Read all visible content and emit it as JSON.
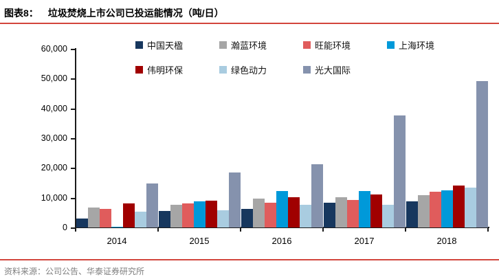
{
  "header": {
    "fig_label": "图表8：",
    "title": "垃圾焚烧上市公司已投运能情况（吨/日）"
  },
  "source": {
    "text": "资料来源：公司公告、华泰证券研究所"
  },
  "accent_line_color": "#d2453c",
  "chart_data": {
    "type": "bar",
    "title": "垃圾焚烧上市公司已投运能情况（吨/日）",
    "categories": [
      "2014",
      "2015",
      "2016",
      "2017",
      "2018"
    ],
    "series": [
      {
        "name": "中国天楹",
        "color": "#17375E",
        "values": [
          3000,
          5600,
          6300,
          8300,
          8800
        ]
      },
      {
        "name": "瀚蓝环境",
        "color": "#A6A6A6",
        "values": [
          6600,
          7500,
          9800,
          10100,
          10800
        ]
      },
      {
        "name": "旺能环境",
        "color": "#E05C5C",
        "values": [
          6200,
          8000,
          8300,
          9300,
          12100
        ]
      },
      {
        "name": "上海环境",
        "color": "#0099D9",
        "values": [
          300,
          8700,
          12200,
          12200,
          12500
        ]
      },
      {
        "name": "伟明环保",
        "color": "#A00000",
        "values": [
          8100,
          9000,
          10100,
          11100,
          14100
        ]
      },
      {
        "name": "绿色动力",
        "color": "#A9CCE0",
        "values": [
          5200,
          5800,
          7600,
          7600,
          13400
        ]
      },
      {
        "name": "光大国际",
        "color": "#8592AD",
        "values": [
          14700,
          18500,
          21200,
          37700,
          49200
        ]
      }
    ],
    "ylim": [
      0,
      60000
    ],
    "ytick_interval": 10000,
    "yticks": [
      "60,000",
      "50,000",
      "40,000",
      "30,000",
      "20,000",
      "10,000",
      "0"
    ],
    "legend_position": "top",
    "grid": false,
    "xlabel": "",
    "ylabel": ""
  }
}
